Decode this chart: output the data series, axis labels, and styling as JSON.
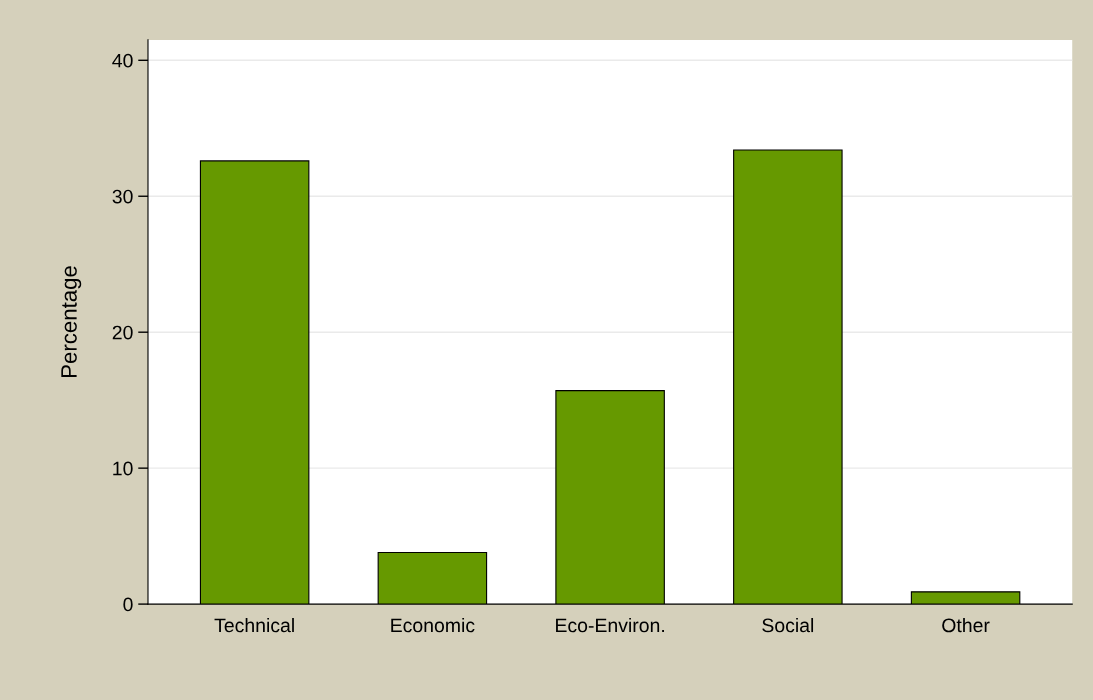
{
  "chart_data": {
    "type": "bar",
    "ylabel": "Percentage",
    "categories": [
      "Technical",
      "Economic",
      "Eco-Environ.",
      "Social",
      "Other"
    ],
    "values": [
      32.6,
      3.8,
      15.7,
      33.4,
      0.9
    ],
    "color": "#669900",
    "ylim": [
      0,
      41.5
    ],
    "yticks": [
      0,
      10,
      20,
      30,
      40
    ],
    "grid": "y"
  }
}
